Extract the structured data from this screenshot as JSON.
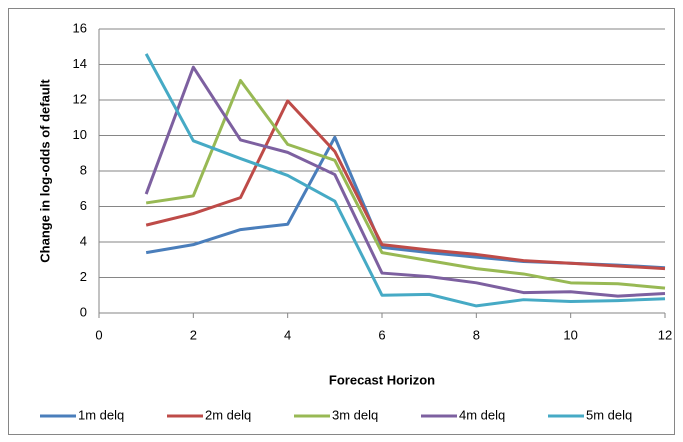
{
  "chart_data": {
    "type": "line",
    "y_label": "Change in log-odds of default",
    "x_label": "Forecast Horizon",
    "x": [
      1,
      2,
      3,
      4,
      5,
      6,
      7,
      8,
      9,
      10,
      11,
      12
    ],
    "xlim": [
      0,
      12
    ],
    "xticks": [
      0,
      2,
      4,
      6,
      8,
      10,
      12
    ],
    "ylim": [
      0,
      16
    ],
    "yticks": [
      0,
      2,
      4,
      6,
      8,
      10,
      12,
      14,
      16
    ],
    "grid": true,
    "legend": "bottom",
    "series": [
      {
        "name": "1m delq",
        "color": "#4a7ebb",
        "values": [
          3.4,
          3.85,
          4.7,
          5.0,
          9.9,
          3.7,
          3.4,
          3.15,
          2.9,
          2.8,
          2.7,
          2.55
        ]
      },
      {
        "name": "2m delq",
        "color": "#be4b48",
        "values": [
          4.95,
          5.6,
          6.5,
          11.95,
          9.1,
          3.85,
          3.55,
          3.3,
          2.95,
          2.8,
          2.65,
          2.5
        ]
      },
      {
        "name": "3m delq",
        "color": "#98b954",
        "values": [
          6.2,
          6.6,
          13.1,
          9.5,
          8.6,
          3.4,
          2.95,
          2.5,
          2.2,
          1.7,
          1.65,
          1.4
        ]
      },
      {
        "name": "4m delq",
        "color": "#7d60a0",
        "values": [
          6.7,
          13.85,
          9.75,
          9.05,
          7.8,
          2.25,
          2.05,
          1.7,
          1.15,
          1.2,
          0.95,
          1.1
        ]
      },
      {
        "name": "5m delq",
        "color": "#46aac5",
        "values": [
          14.6,
          9.7,
          8.7,
          7.75,
          6.3,
          1.0,
          1.05,
          0.4,
          0.75,
          0.65,
          0.7,
          0.8
        ]
      }
    ]
  }
}
